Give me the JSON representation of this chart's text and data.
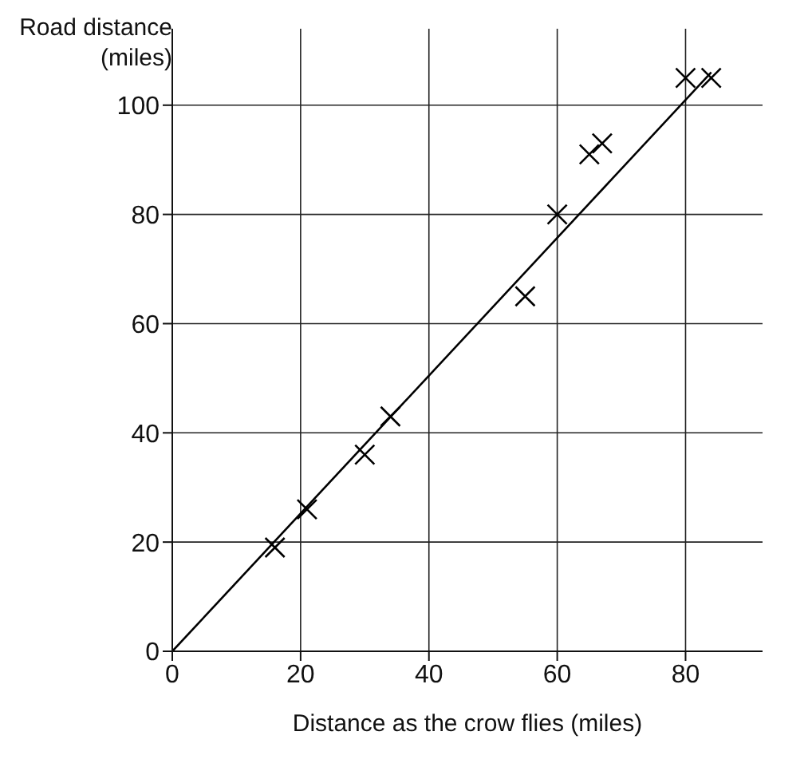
{
  "chart_data": {
    "type": "scatter",
    "xlabel": "Distance as the crow flies (miles)",
    "ylabel": "Road distance (miles)",
    "series": [
      {
        "color": "#000000",
        "marker": "cross",
        "x": [
          16,
          21,
          30,
          34,
          55,
          60,
          65,
          67,
          80,
          84
        ],
        "values": [
          19,
          26,
          36,
          43,
          65,
          80,
          91,
          93,
          105,
          105
        ]
      },
      {
        "type": "line",
        "color": "#000000",
        "line_style": "solid",
        "x": [
          0,
          84
        ],
        "values": [
          0,
          106
        ]
      }
    ],
    "xlim": [
      0,
      92
    ],
    "xticks": [
      0,
      20,
      40,
      60,
      80
    ],
    "ylim": [
      0,
      114
    ],
    "yticks": [
      0,
      20,
      40,
      60,
      80,
      100
    ],
    "grid": true
  }
}
